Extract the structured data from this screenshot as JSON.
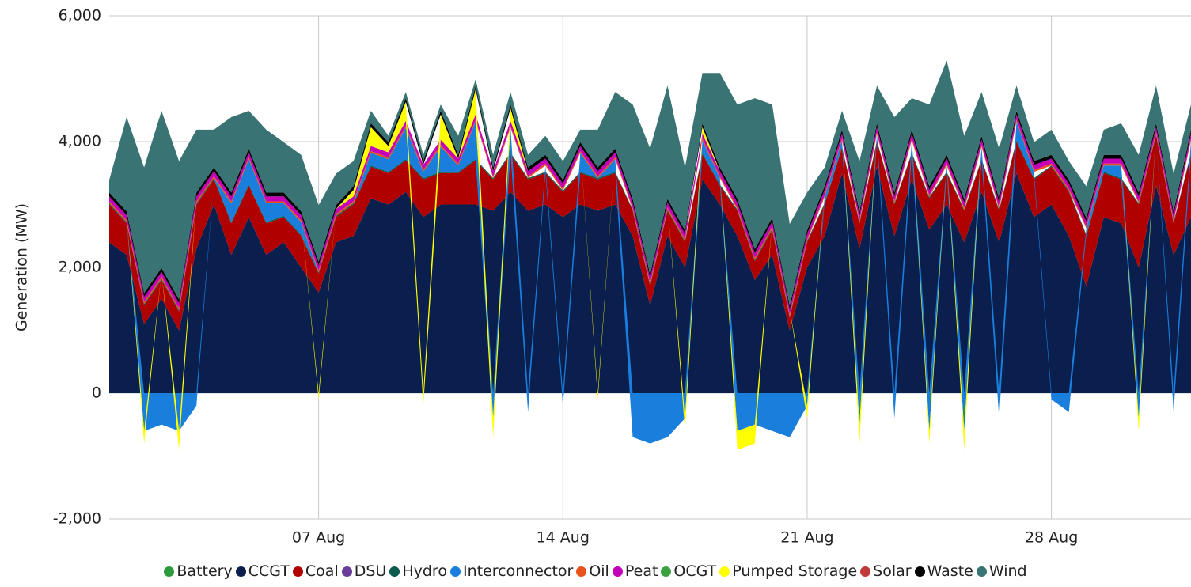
{
  "chart_data": {
    "type": "stacked-area",
    "y_label": "Generation (MW)",
    "xlim": [
      0,
      31
    ],
    "xticks": [
      {
        "value": 6,
        "label": "07 Aug"
      },
      {
        "value": 13,
        "label": "14 Aug"
      },
      {
        "value": 20,
        "label": "21 Aug"
      },
      {
        "value": 27,
        "label": "28 Aug"
      }
    ],
    "ylim": [
      -2000,
      6000
    ],
    "yticks": [
      {
        "value": -2000,
        "label": "-2,000"
      },
      0,
      {
        "value": 2000,
        "label": "2,000"
      },
      {
        "value": 4000,
        "label": "4,000"
      },
      {
        "value": 6000,
        "label": "6,000"
      }
    ],
    "grid": true,
    "legend": "bottom",
    "x": [
      0,
      0.5,
      1,
      1.5,
      2,
      2.5,
      3,
      3.5,
      4,
      4.5,
      5,
      5.5,
      6,
      6.5,
      7,
      7.5,
      8,
      8.5,
      9,
      9.5,
      10,
      10.5,
      11,
      11.5,
      12,
      12.5,
      13,
      13.5,
      14,
      14.5,
      15,
      15.5,
      16,
      16.5,
      17,
      17.5,
      18,
      18.5,
      19,
      19.5,
      20,
      20.5,
      21,
      21.5,
      22,
      22.5,
      23,
      23.5,
      24,
      24.5,
      25,
      25.5,
      26,
      26.5,
      27,
      27.5,
      28,
      28.5,
      29,
      29.5,
      30,
      30.5,
      31
    ],
    "series": [
      {
        "name": "Battery",
        "color": "#2e9b3b",
        "values": [
          0,
          0,
          0,
          0,
          0,
          0,
          0,
          0,
          0,
          0,
          0,
          0,
          0,
          0,
          0,
          0,
          0,
          0,
          0,
          0,
          0,
          0,
          0,
          0,
          0,
          0,
          0,
          0,
          0,
          0,
          0,
          0,
          0,
          0,
          0,
          0,
          0,
          0,
          0,
          0,
          0,
          0,
          0,
          0,
          0,
          0,
          0,
          0,
          0,
          0,
          0,
          0,
          0,
          0,
          0,
          0,
          0,
          0,
          0,
          0,
          0,
          0,
          0
        ]
      },
      {
        "name": "CCGT",
        "color": "#0b1f4f",
        "values": [
          2400,
          2200,
          1100,
          1500,
          1000,
          2300,
          3000,
          2200,
          2800,
          2200,
          2400,
          2000,
          1600,
          2400,
          2500,
          3100,
          3000,
          3200,
          2800,
          3000,
          3000,
          3000,
          2900,
          3200,
          2900,
          3000,
          2800,
          3000,
          2900,
          3000,
          2500,
          1400,
          2500,
          2000,
          3400,
          3000,
          2500,
          1800,
          2200,
          1000,
          2000,
          2500,
          3500,
          2300,
          3600,
          2500,
          3400,
          2600,
          3000,
          2400,
          3200,
          2400,
          3500,
          2800,
          3000,
          2500,
          1700,
          2800,
          2700,
          2000,
          3300,
          2200,
          2800
        ]
      },
      {
        "name": "Coal",
        "color": "#b00000",
        "values": [
          600,
          500,
          300,
          300,
          300,
          700,
          400,
          500,
          500,
          500,
          400,
          500,
          300,
          400,
          500,
          500,
          500,
          500,
          600,
          500,
          500,
          700,
          500,
          600,
          500,
          500,
          400,
          500,
          500,
          500,
          400,
          300,
          400,
          400,
          400,
          300,
          400,
          300,
          400,
          200,
          400,
          500,
          400,
          400,
          400,
          500,
          400,
          500,
          500,
          500,
          500,
          500,
          500,
          600,
          600,
          700,
          800,
          700,
          700,
          1000,
          800,
          500,
          1000
        ]
      },
      {
        "name": "DSU",
        "color": "#6a3d9a",
        "values": [
          0,
          0,
          0,
          0,
          0,
          0,
          0,
          0,
          0,
          0,
          0,
          0,
          0,
          0,
          0,
          0,
          0,
          0,
          0,
          0,
          0,
          0,
          0,
          0,
          0,
          0,
          0,
          0,
          0,
          0,
          0,
          0,
          0,
          0,
          0,
          0,
          0,
          0,
          0,
          0,
          0,
          0,
          0,
          0,
          0,
          0,
          0,
          0,
          0,
          0,
          0,
          0,
          0,
          0,
          0,
          0,
          0,
          0,
          0,
          0,
          0,
          0,
          0
        ]
      },
      {
        "name": "Hydro",
        "color": "#0b5a4f",
        "values": [
          20,
          20,
          20,
          20,
          20,
          20,
          20,
          20,
          20,
          20,
          20,
          20,
          20,
          20,
          20,
          20,
          20,
          20,
          20,
          20,
          20,
          20,
          20,
          20,
          20,
          20,
          20,
          20,
          20,
          20,
          20,
          20,
          20,
          20,
          20,
          20,
          20,
          20,
          20,
          20,
          20,
          20,
          20,
          20,
          20,
          20,
          20,
          20,
          20,
          20,
          20,
          20,
          20,
          20,
          20,
          20,
          20,
          20,
          20,
          20,
          20,
          20,
          20
        ]
      },
      {
        "name": "Interconnector",
        "color": "#1a7fdc",
        "values": [
          0,
          0,
          -600,
          -500,
          -600,
          -200,
          0,
          300,
          400,
          300,
          200,
          200,
          0,
          0,
          0,
          200,
          200,
          500,
          100,
          400,
          100,
          600,
          -400,
          400,
          -300,
          100,
          -200,
          300,
          0,
          200,
          -700,
          -800,
          -700,
          -400,
          200,
          100,
          -600,
          -500,
          -600,
          -700,
          -200,
          100,
          100,
          -500,
          100,
          -400,
          200,
          -600,
          100,
          -600,
          200,
          -400,
          300,
          100,
          -100,
          -300,
          100,
          100,
          200,
          -400,
          0,
          -300,
          200
        ]
      },
      {
        "name": "Oil",
        "color": "#e8531a",
        "values": [
          30,
          30,
          30,
          30,
          30,
          30,
          30,
          30,
          30,
          30,
          30,
          30,
          30,
          30,
          30,
          30,
          30,
          30,
          30,
          30,
          30,
          30,
          30,
          30,
          30,
          30,
          30,
          30,
          30,
          30,
          30,
          30,
          30,
          30,
          30,
          30,
          30,
          30,
          30,
          30,
          30,
          30,
          30,
          30,
          30,
          30,
          30,
          30,
          30,
          30,
          30,
          30,
          30,
          30,
          30,
          30,
          30,
          30,
          30,
          30,
          30,
          30,
          30
        ]
      },
      {
        "name": "Peat",
        "color": "#c400b8",
        "values": [
          80,
          80,
          80,
          80,
          80,
          80,
          80,
          80,
          80,
          80,
          80,
          80,
          80,
          80,
          80,
          80,
          80,
          80,
          80,
          80,
          80,
          80,
          80,
          80,
          80,
          80,
          80,
          80,
          80,
          80,
          80,
          80,
          80,
          80,
          80,
          80,
          80,
          80,
          80,
          80,
          80,
          80,
          80,
          80,
          80,
          80,
          80,
          80,
          80,
          80,
          80,
          80,
          80,
          80,
          80,
          80,
          80,
          80,
          80,
          80,
          80,
          80,
          80
        ]
      },
      {
        "name": "OCGT",
        "color": "#3aa040",
        "values": [
          0,
          0,
          0,
          0,
          0,
          0,
          0,
          0,
          0,
          0,
          0,
          0,
          0,
          0,
          0,
          0,
          0,
          0,
          0,
          0,
          0,
          0,
          0,
          0,
          0,
          0,
          0,
          0,
          0,
          0,
          0,
          0,
          0,
          0,
          0,
          0,
          0,
          0,
          0,
          0,
          0,
          0,
          0,
          0,
          0,
          0,
          0,
          0,
          0,
          0,
          0,
          0,
          0,
          0,
          0,
          0,
          0,
          0,
          0,
          0,
          0,
          0,
          0
        ]
      },
      {
        "name": "Pumped Storage",
        "color": "#ffff00",
        "values": [
          0,
          0,
          -200,
          0,
          -300,
          0,
          0,
          0,
          0,
          0,
          0,
          0,
          -100,
          0,
          100,
          300,
          100,
          300,
          -200,
          400,
          0,
          400,
          -300,
          200,
          0,
          0,
          0,
          0,
          -100,
          0,
          0,
          0,
          0,
          -200,
          100,
          0,
          -300,
          -300,
          0,
          0,
          -200,
          0,
          0,
          -300,
          0,
          0,
          0,
          -200,
          0,
          -300,
          0,
          0,
          0,
          0,
          0,
          0,
          0,
          0,
          0,
          -200,
          0,
          0,
          0
        ]
      },
      {
        "name": "Solar",
        "color": "#c0393b",
        "values": [
          0,
          0,
          0,
          0,
          0,
          0,
          0,
          0,
          0,
          0,
          0,
          0,
          0,
          0,
          0,
          0,
          0,
          0,
          0,
          0,
          0,
          0,
          0,
          0,
          0,
          0,
          0,
          0,
          0,
          0,
          0,
          0,
          0,
          0,
          0,
          0,
          0,
          0,
          0,
          0,
          0,
          0,
          0,
          0,
          0,
          0,
          0,
          0,
          0,
          0,
          0,
          0,
          0,
          0,
          0,
          0,
          0,
          0,
          0,
          0,
          0,
          0,
          0
        ]
      },
      {
        "name": "Waste",
        "color": "#000000",
        "values": [
          60,
          60,
          60,
          60,
          60,
          60,
          60,
          60,
          60,
          60,
          60,
          60,
          60,
          60,
          60,
          60,
          60,
          60,
          60,
          60,
          60,
          60,
          60,
          60,
          60,
          60,
          60,
          60,
          60,
          60,
          60,
          60,
          60,
          60,
          60,
          60,
          60,
          60,
          60,
          60,
          60,
          60,
          60,
          60,
          60,
          60,
          60,
          60,
          60,
          60,
          60,
          60,
          60,
          60,
          60,
          60,
          60,
          60,
          60,
          60,
          60,
          60,
          60
        ]
      },
      {
        "name": "Wind",
        "color": "#3a7373",
        "values": [
          200,
          1500,
          2000,
          2500,
          2200,
          1000,
          600,
          1200,
          600,
          1000,
          800,
          900,
          900,
          500,
          400,
          200,
          100,
          100,
          100,
          100,
          300,
          100,
          200,
          200,
          200,
          300,
          300,
          200,
          600,
          900,
          1500,
          2000,
          1800,
          1000,
          800,
          1500,
          1500,
          2400,
          1800,
          1300,
          600,
          300,
          300,
          800,
          600,
          1200,
          500,
          1300,
          1500,
          1000,
          700,
          800,
          400,
          300,
          400,
          300,
          500,
          400,
          500,
          600,
          600,
          600,
          400
        ]
      }
    ]
  }
}
